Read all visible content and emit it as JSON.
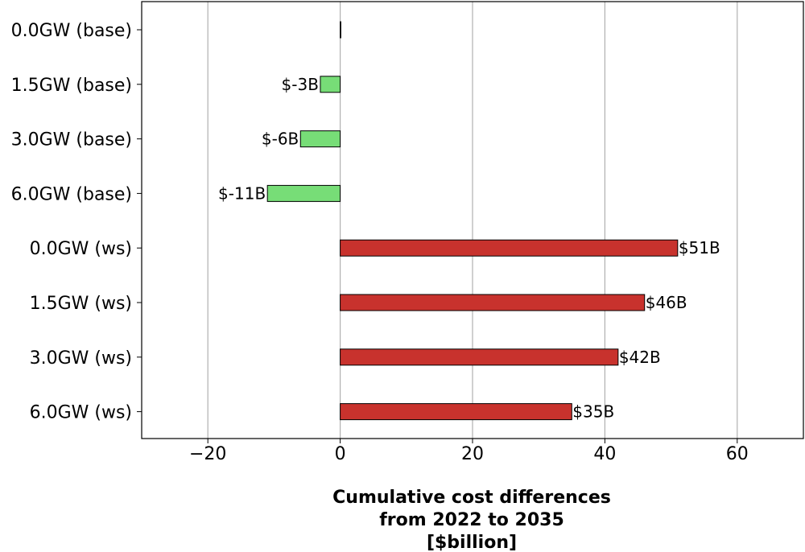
{
  "chart_data": {
    "type": "bar",
    "orientation": "horizontal",
    "categories": [
      "0.0GW (base)",
      "1.5GW (base)",
      "3.0GW (base)",
      "6.0GW (base)",
      "0.0GW (ws)",
      "1.5GW (ws)",
      "3.0GW (ws)",
      "6.0GW (ws)"
    ],
    "values": [
      0.1,
      -3,
      -6,
      -11,
      51,
      46,
      42,
      35
    ],
    "data_labels": [
      "",
      "$-3B",
      "$-6B",
      "$-11B",
      "$51B",
      "$46B",
      "$42B",
      "$35B"
    ],
    "xlim": [
      -30,
      70
    ],
    "xticks": [
      -20,
      0,
      20,
      40,
      60
    ],
    "xtick_labels": [
      "−20",
      "0",
      "20",
      "40",
      "60"
    ],
    "xlabel_lines": [
      "Cumulative cost differences",
      "from 2022 to 2035",
      "[$billion]"
    ],
    "title": "",
    "grid": "vertical",
    "colors": {
      "negative": "#77dd77",
      "positive": "#c8322d",
      "grid": "#b0b0b0",
      "frame": "#000000"
    }
  }
}
